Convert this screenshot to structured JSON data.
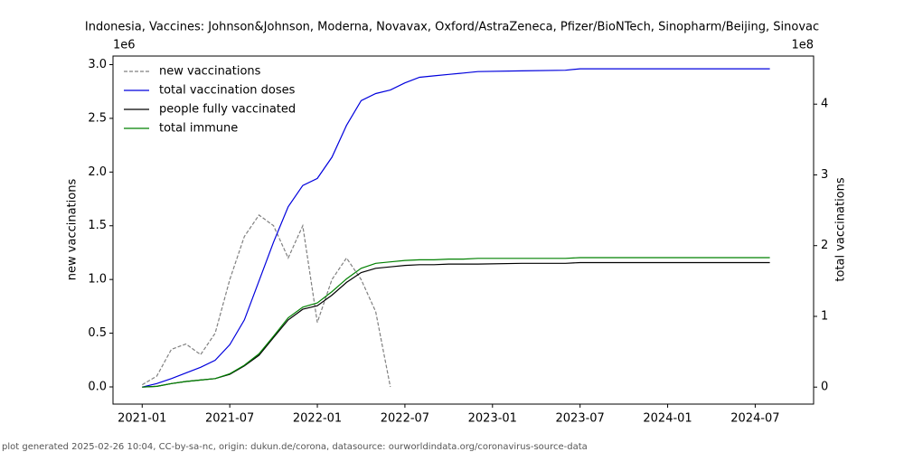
{
  "chart_data": {
    "type": "line",
    "title": "Indonesia, Vaccines: Johnson&Johnson, Moderna, Novavax, Oxford/AstraZeneca, Pfizer/BioNTech, Sinopharm/Beijing, Sinovac",
    "y_label": "new vaccinations",
    "y2_label": "total vaccinations",
    "y_offset_label": "1e6",
    "y2_offset_label": "1e8",
    "footer": "plot generated 2025-02-26 10:04, CC-by-sa-nc, origin: dukun.de/corona, datasource: ourworldindata.org/coronavirus-source-data",
    "legend": "upper left",
    "x": [
      "2021-01",
      "2021-02",
      "2021-03",
      "2021-04",
      "2021-05",
      "2021-06",
      "2021-07",
      "2021-08",
      "2021-09",
      "2021-10",
      "2021-11",
      "2021-12",
      "2022-01",
      "2022-02",
      "2022-03",
      "2022-04",
      "2022-05",
      "2022-06",
      "2022-07",
      "2022-08",
      "2022-09",
      "2022-10",
      "2022-11",
      "2022-12",
      "2023-03",
      "2023-06",
      "2023-07",
      "2023-12",
      "2024-04",
      "2024-08"
    ],
    "xlim": [
      "2020-11",
      "2024-11"
    ],
    "xticks": [
      "2021-01",
      "2021-07",
      "2022-01",
      "2022-07",
      "2023-01",
      "2023-07",
      "2024-01",
      "2024-07"
    ],
    "ylim": [
      -0.16,
      3.08
    ],
    "yticks": [
      {
        "value": 0,
        "label": "0.0"
      },
      0.5,
      {
        "value": 1,
        "label": "1.0"
      },
      1.5,
      {
        "value": 2,
        "label": "2.0"
      },
      2.5,
      {
        "value": 3,
        "label": "3.0"
      }
    ],
    "y2lim": [
      -0.24,
      4.68
    ],
    "y2ticks": [
      0,
      1,
      2,
      3,
      4
    ],
    "series": [
      {
        "name": "new vaccinations",
        "color": "#808080",
        "dash": true,
        "axis": "y",
        "values": [
          0.02,
          0.1,
          0.35,
          0.4,
          0.3,
          0.5,
          1.0,
          1.4,
          1.6,
          1.5,
          1.2,
          1.5,
          0.6,
          1.0,
          1.2,
          1.0,
          0.7,
          0,
          null,
          null,
          null,
          null,
          null,
          null,
          null,
          null,
          null,
          null,
          null,
          null
        ]
      },
      {
        "name": "total vaccination doses",
        "color": "#0000dd",
        "axis": "y2",
        "values": [
          0,
          0.05,
          0.12,
          0.2,
          0.28,
          0.38,
          0.6,
          0.95,
          1.5,
          2.05,
          2.55,
          2.85,
          2.95,
          3.25,
          3.7,
          4.05,
          4.15,
          4.2,
          4.3,
          4.38,
          4.4,
          4.42,
          4.44,
          4.46,
          4.47,
          4.48,
          4.5,
          4.5,
          4.5,
          4.5
        ]
      },
      {
        "name": "people fully vaccinated",
        "color": "#000000",
        "axis": "y2",
        "values": [
          0,
          0.01,
          0.05,
          0.08,
          0.1,
          0.12,
          0.18,
          0.3,
          0.45,
          0.7,
          0.95,
          1.1,
          1.15,
          1.3,
          1.48,
          1.62,
          1.68,
          1.7,
          1.72,
          1.73,
          1.73,
          1.74,
          1.74,
          1.74,
          1.75,
          1.75,
          1.76,
          1.76,
          1.76,
          1.76
        ]
      },
      {
        "name": "total immune",
        "color": "#008000",
        "axis": "y2",
        "values": [
          0,
          0.01,
          0.05,
          0.08,
          0.1,
          0.12,
          0.19,
          0.31,
          0.47,
          0.72,
          0.98,
          1.13,
          1.19,
          1.35,
          1.53,
          1.68,
          1.75,
          1.77,
          1.79,
          1.8,
          1.8,
          1.81,
          1.81,
          1.82,
          1.82,
          1.82,
          1.83,
          1.83,
          1.83,
          1.83
        ]
      }
    ]
  }
}
